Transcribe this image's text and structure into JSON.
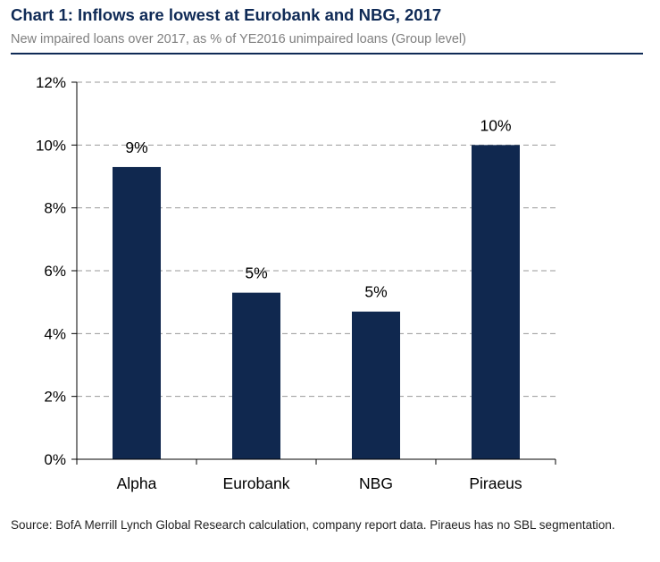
{
  "header": {
    "title": "Chart 1: Inflows are lowest at Eurobank and NBG, 2017",
    "subtitle": "New impaired loans over 2017, as % of YE2016 unimpaired loans (Group level)"
  },
  "footer": {
    "source": "Source:  BofA Merrill Lynch Global Research calculation, company  report data. Piraeus has no SBL segmentation."
  },
  "colors": {
    "bar": "#10284f",
    "title": "#0f2a56",
    "grid": "#9a9a9a",
    "axis": "#000000"
  },
  "chart_data": {
    "type": "bar",
    "title": "Chart 1: Inflows are lowest at Eurobank and NBG, 2017",
    "subtitle": "New impaired loans over 2017, as % of YE2016 unimpaired loans (Group level)",
    "xlabel": "",
    "ylabel": "",
    "categories": [
      "Alpha",
      "Eurobank",
      "NBG",
      "Piraeus"
    ],
    "values": [
      9.3,
      5.3,
      4.7,
      10.0
    ],
    "data_labels": [
      "9%",
      "5%",
      "5%",
      "10%"
    ],
    "ylim": [
      0,
      12
    ],
    "yticks": [
      0,
      2,
      4,
      6,
      8,
      10,
      12
    ],
    "ytick_labels": [
      "0%",
      "2%",
      "4%",
      "6%",
      "8%",
      "10%",
      "12%"
    ],
    "grid": true,
    "legend": "none"
  }
}
